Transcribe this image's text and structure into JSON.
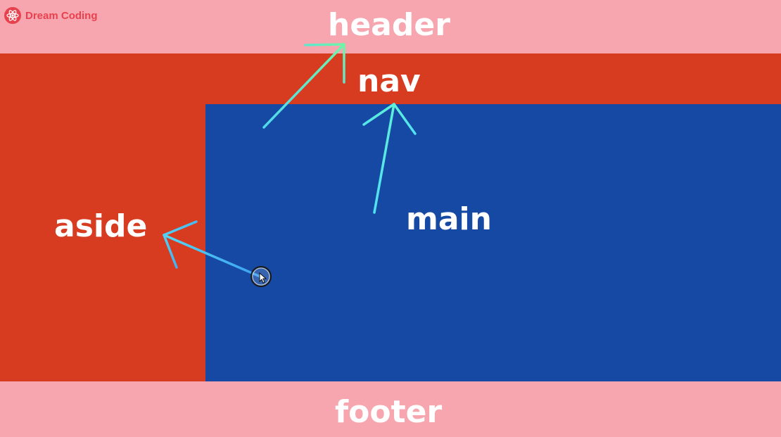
{
  "brand": {
    "name": "Dream Coding",
    "icon": "atom-icon",
    "color": "#e8414e"
  },
  "regions": {
    "header": {
      "label": "header",
      "color": "#f7a6b0"
    },
    "nav": {
      "label": "nav",
      "color": "#d73b20"
    },
    "aside": {
      "label": "aside",
      "color": "#d73b20"
    },
    "main": {
      "label": "main",
      "color": "#1549a3"
    },
    "footer": {
      "label": "footer",
      "color": "#f7a6b0"
    }
  },
  "annotations": {
    "arrow_color": "#5ef0c8",
    "arrows": [
      {
        "from": "main",
        "to": "header"
      },
      {
        "from": "main",
        "to": "nav"
      },
      {
        "from": "main",
        "to": "aside"
      }
    ]
  }
}
